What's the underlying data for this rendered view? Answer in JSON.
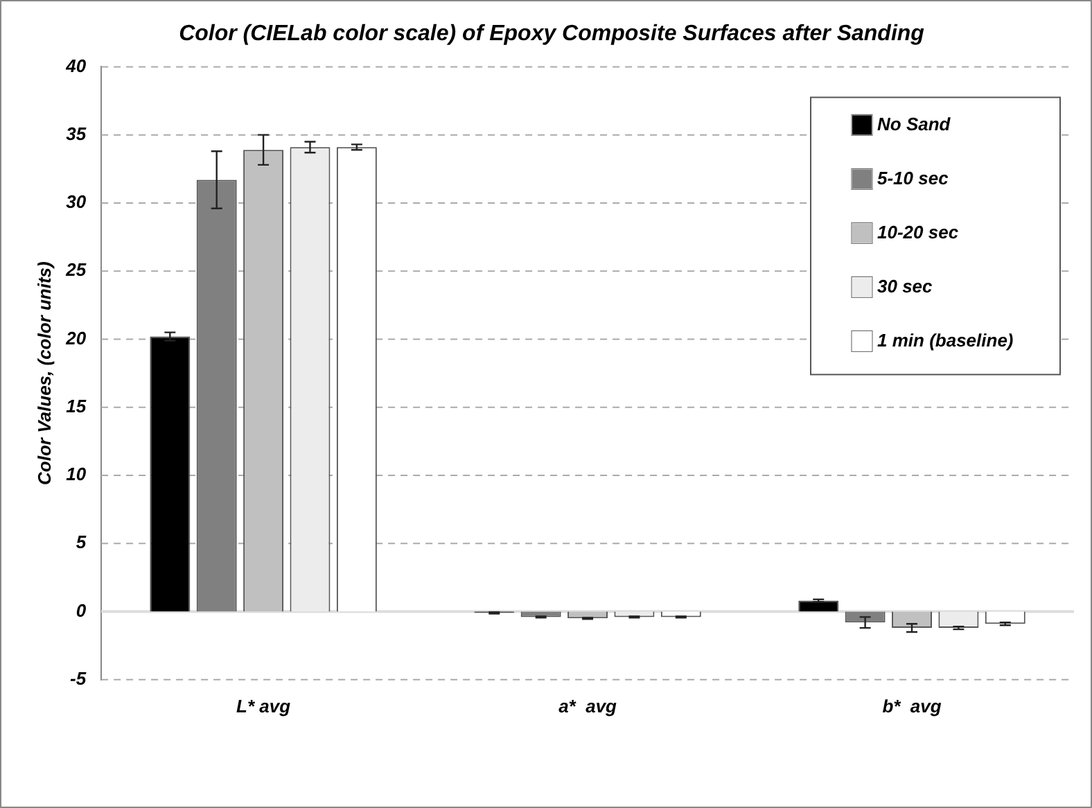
{
  "chart_data": {
    "type": "bar",
    "title": "Color (CIELab color scale) of Epoxy Composite Surfaces after Sanding",
    "ylabel": "Color Values, (color units)",
    "categories": [
      "L* avg",
      "a*  avg",
      "b*  avg"
    ],
    "series": [
      {
        "name": "No Sand",
        "color": "#000000",
        "values": [
          20.2,
          -0.1,
          0.8
        ],
        "errors": [
          0.3,
          0.05,
          0.1
        ]
      },
      {
        "name": "5-10 sec",
        "color": "#808080",
        "values": [
          31.7,
          -0.4,
          -0.8
        ],
        "errors": [
          2.1,
          0.05,
          0.4
        ]
      },
      {
        "name": "10-20 sec",
        "color": "#c0c0c0",
        "values": [
          33.9,
          -0.5,
          -1.2
        ],
        "errors": [
          1.1,
          0.05,
          0.3
        ]
      },
      {
        "name": "30 sec",
        "color": "#ececec",
        "values": [
          34.1,
          -0.4,
          -1.2
        ],
        "errors": [
          0.4,
          0.05,
          0.1
        ]
      },
      {
        "name": "1 min (baseline)",
        "color": "#ffffff",
        "values": [
          34.1,
          -0.4,
          -0.9
        ],
        "errors": [
          0.2,
          0.05,
          0.1
        ]
      }
    ],
    "ylim": [
      -5,
      40
    ],
    "yticks": [
      -5,
      0,
      5,
      10,
      15,
      20,
      25,
      30,
      35,
      40
    ],
    "grid": "y",
    "legend": "top right"
  }
}
